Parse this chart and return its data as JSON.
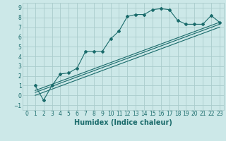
{
  "title": "",
  "xlabel": "Humidex (Indice chaleur)",
  "ylabel": "",
  "bg_color": "#cce8e8",
  "grid_color": "#aacccc",
  "line_color": "#1a6b6b",
  "xlim": [
    -0.5,
    23.5
  ],
  "ylim": [
    -1.5,
    9.5
  ],
  "yticks": [
    -1,
    0,
    1,
    2,
    3,
    4,
    5,
    6,
    7,
    8,
    9
  ],
  "xticks": [
    0,
    1,
    2,
    3,
    4,
    5,
    6,
    7,
    8,
    9,
    10,
    11,
    12,
    13,
    14,
    15,
    16,
    17,
    18,
    19,
    20,
    21,
    22,
    23
  ],
  "line1_x": [
    1,
    2,
    3,
    4,
    5,
    6,
    7,
    8,
    9,
    10,
    11,
    12,
    13,
    14,
    15,
    16,
    17,
    18,
    19,
    20,
    21,
    22,
    23
  ],
  "line1_y": [
    1.0,
    -0.5,
    1.0,
    2.2,
    2.3,
    2.8,
    4.5,
    4.5,
    4.5,
    5.8,
    6.6,
    8.1,
    8.3,
    8.3,
    8.8,
    8.9,
    8.8,
    7.7,
    7.3,
    7.3,
    7.3,
    8.2,
    7.5
  ],
  "line2_x": [
    1,
    23
  ],
  "line2_y": [
    0.5,
    7.5
  ],
  "line3_x": [
    1,
    23
  ],
  "line3_y": [
    0.3,
    7.3
  ],
  "line4_x": [
    1,
    23
  ],
  "line4_y": [
    0.0,
    7.0
  ],
  "marker_size": 2.0,
  "linewidth": 0.8,
  "xlabel_fontsize": 7,
  "tick_fontsize": 5.5
}
